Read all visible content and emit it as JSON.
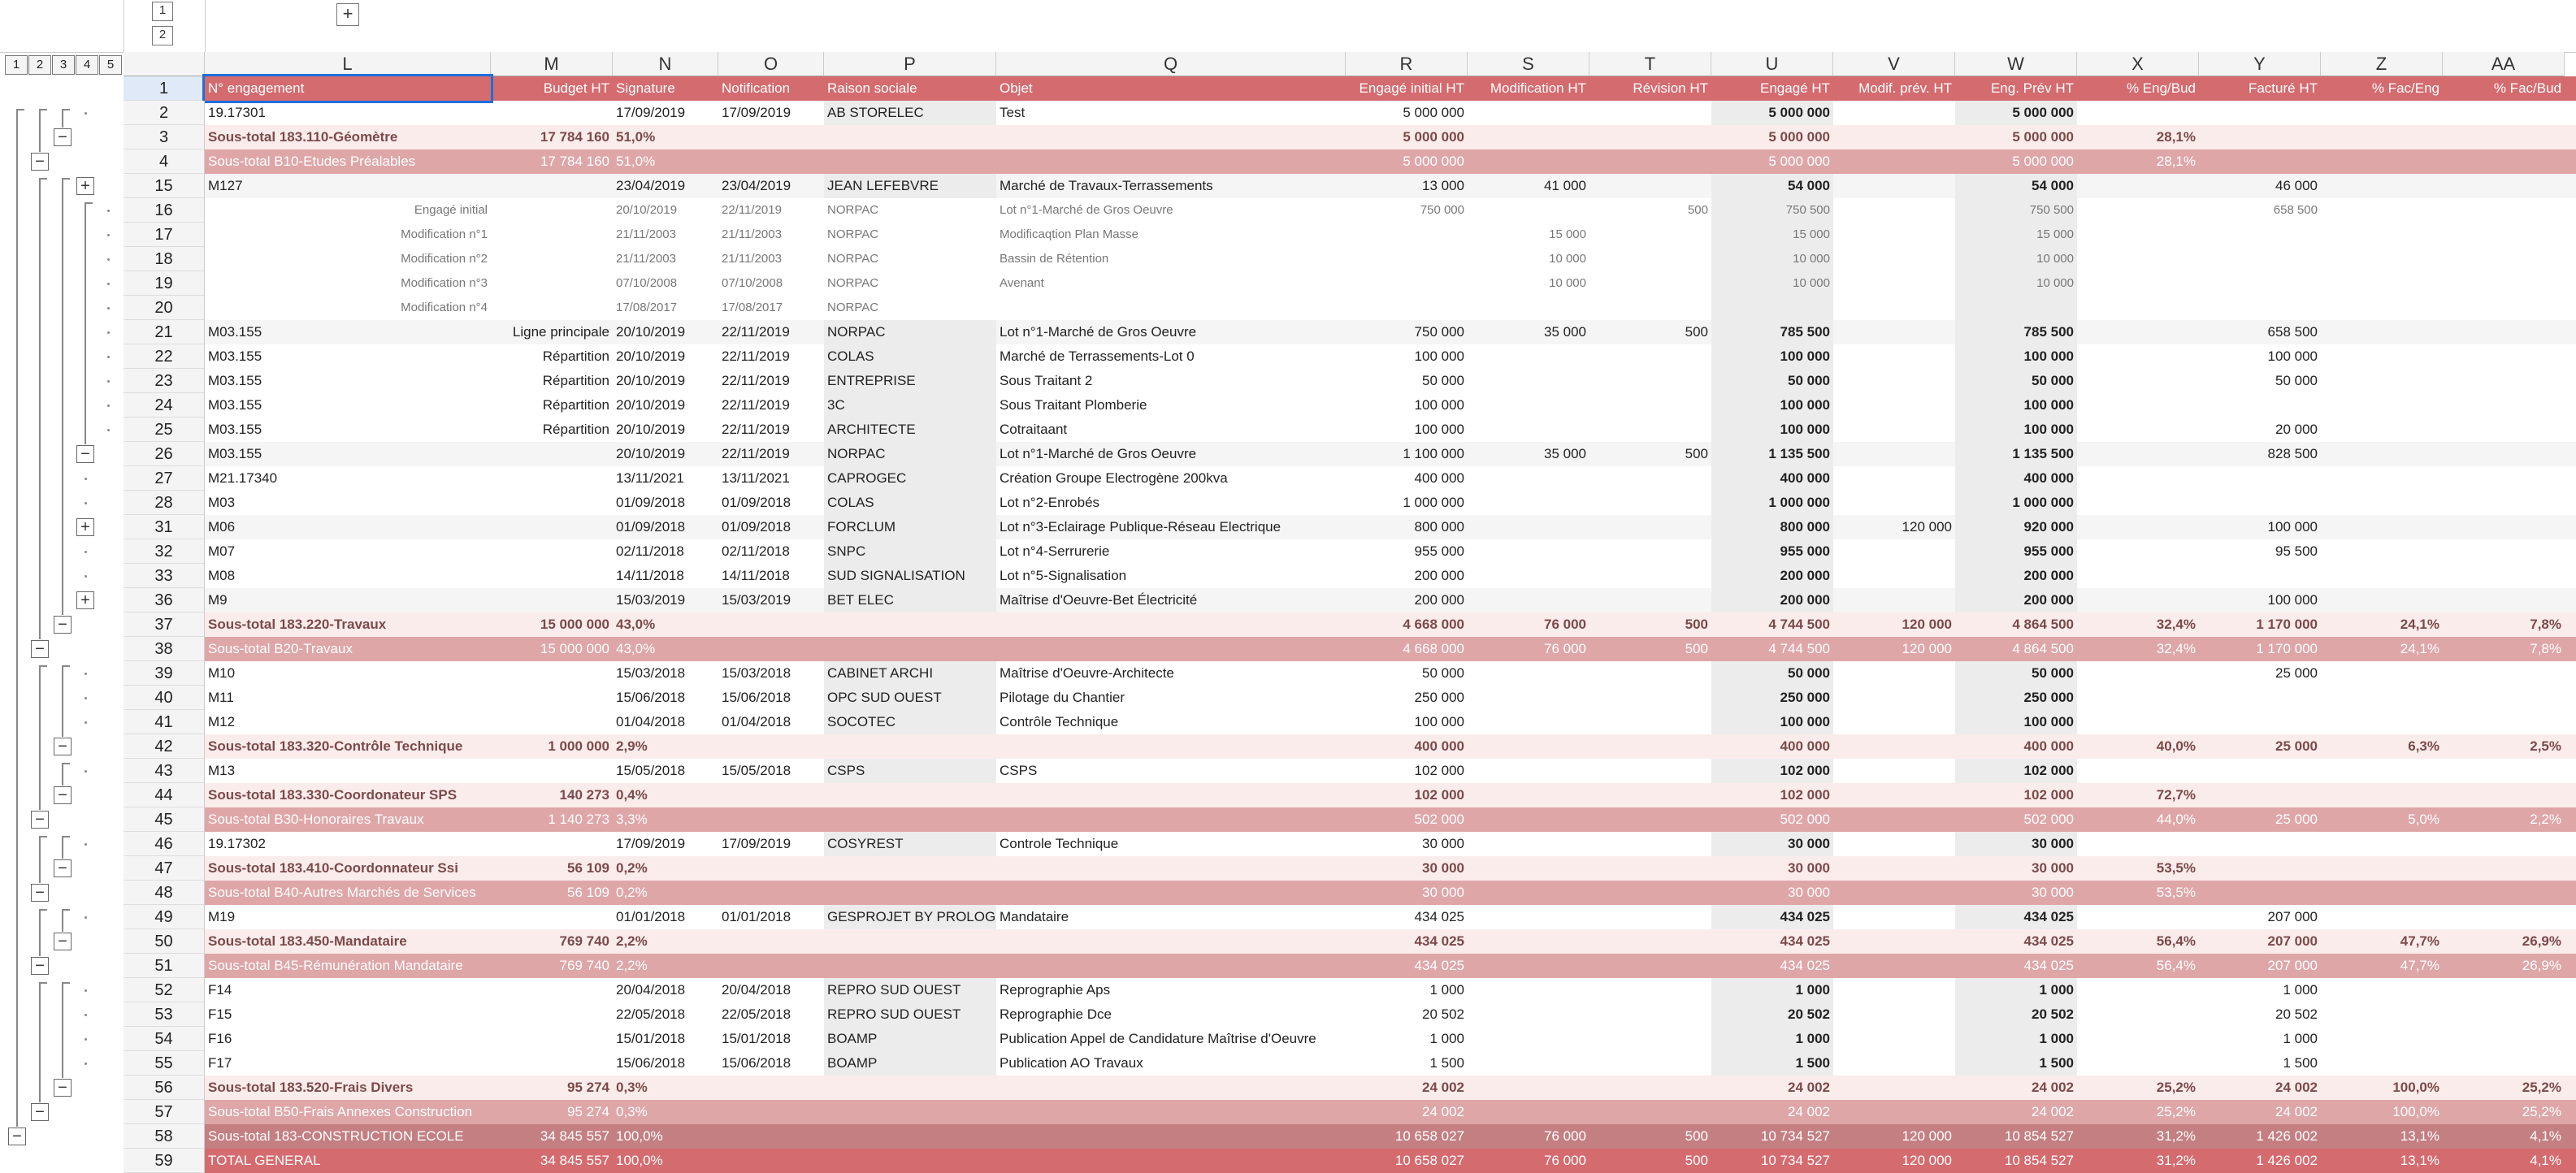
{
  "outline_top": {
    "box1": "1",
    "box2": "2",
    "expand": "+"
  },
  "levels": [
    "1",
    "2",
    "3",
    "4",
    "5"
  ],
  "columns": [
    "L",
    "M",
    "N",
    "O",
    "P",
    "Q",
    "R",
    "S",
    "T",
    "U",
    "V",
    "W",
    "X",
    "Y",
    "Z",
    "AA"
  ],
  "headers": {
    "n": "1",
    "cells": [
      "N° engagement",
      "Budget HT",
      "Signature",
      "Notification",
      "Raison sociale",
      "Objet",
      "Engagé initial HT",
      "Modification HT",
      "Révision HT",
      "Engagé HT",
      "Modif. prév. HT",
      "Eng. Prév HT",
      "% Eng/Bud",
      "Facturé HT",
      "% Fac/Eng",
      "% Fac/Bud"
    ]
  },
  "rows": [
    {
      "n": "2",
      "type": "line",
      "cells": [
        "19.17301",
        "",
        "17/09/2019",
        "17/09/2019",
        "AB STORELEC",
        "Test",
        "5 000 000",
        "",
        "",
        "5 000 000",
        "",
        "5 000 000",
        "",
        "",
        "",
        ""
      ]
    },
    {
      "n": "3",
      "type": "sub1",
      "cells": [
        "Sous-total 183.110-Géomètre",
        "17 784 160",
        "51,0%",
        "",
        "",
        "",
        "5 000 000",
        "",
        "",
        "5 000 000",
        "",
        "5 000 000",
        "28,1%",
        "",
        "",
        ""
      ]
    },
    {
      "n": "4",
      "type": "sub2",
      "cells": [
        "Sous-total B10-Etudes Préalables",
        "17 784 160",
        "51,0%",
        "",
        "",
        "",
        "5 000 000",
        "",
        "",
        "5 000 000",
        "",
        "5 000 000",
        "28,1%",
        "",
        "",
        ""
      ]
    },
    {
      "n": "15",
      "type": "line",
      "cells": [
        "M127",
        "",
        "23/04/2019",
        "23/04/2019",
        "JEAN LEFEBVRE",
        "Marché de Travaux-Terrassements",
        "13 000",
        "41 000",
        "",
        "54 000",
        "",
        "54 000",
        "",
        "46 000",
        "",
        ""
      ]
    },
    {
      "n": "16",
      "type": "mod",
      "cells": [
        "Engagé initial",
        "",
        "20/10/2019",
        "22/11/2019",
        "NORPAC",
        "Lot n°1-Marché de Gros Oeuvre",
        "750 000",
        "",
        "500",
        "750 500",
        "",
        "750 500",
        "",
        "658 500",
        "",
        ""
      ]
    },
    {
      "n": "17",
      "type": "mod",
      "cells": [
        "Modification n°1",
        "",
        "21/11/2003",
        "21/11/2003",
        "NORPAC",
        "Modificaqtion Plan Masse",
        "",
        "15 000",
        "",
        "15 000",
        "",
        "15 000",
        "",
        "",
        "",
        ""
      ]
    },
    {
      "n": "18",
      "type": "mod",
      "cells": [
        "Modification n°2",
        "",
        "21/11/2003",
        "21/11/2003",
        "NORPAC",
        "Bassin de Rétention",
        "",
        "10 000",
        "",
        "10 000",
        "",
        "10 000",
        "",
        "",
        "",
        ""
      ]
    },
    {
      "n": "19",
      "type": "mod",
      "cells": [
        "Modification n°3",
        "",
        "07/10/2008",
        "07/10/2008",
        "NORPAC",
        "Avenant",
        "",
        "10 000",
        "",
        "10 000",
        "",
        "10 000",
        "",
        "",
        "",
        ""
      ]
    },
    {
      "n": "20",
      "type": "mod",
      "cells": [
        "Modification n°4",
        "",
        "17/08/2017",
        "17/08/2017",
        "NORPAC",
        "",
        "",
        "",
        "",
        "",
        "",
        "",
        "",
        "",
        "",
        ""
      ]
    },
    {
      "n": "21",
      "type": "line",
      "cells": [
        "M03.155",
        "Ligne principale",
        "20/10/2019",
        "22/11/2019",
        "NORPAC",
        "Lot n°1-Marché de Gros Oeuvre",
        "750 000",
        "35 000",
        "500",
        "785 500",
        "",
        "785 500",
        "",
        "658 500",
        "",
        ""
      ]
    },
    {
      "n": "22",
      "type": "line",
      "cells": [
        "M03.155",
        "Répartition",
        "20/10/2019",
        "22/11/2019",
        "COLAS",
        "Marché de Terrassements-Lot 0",
        "100 000",
        "",
        "",
        "100 000",
        "",
        "100 000",
        "",
        "100 000",
        "",
        ""
      ]
    },
    {
      "n": "23",
      "type": "line",
      "cells": [
        "M03.155",
        "Répartition",
        "20/10/2019",
        "22/11/2019",
        "ENTREPRISE",
        "Sous Traitant 2",
        "50 000",
        "",
        "",
        "50 000",
        "",
        "50 000",
        "",
        "50 000",
        "",
        ""
      ]
    },
    {
      "n": "24",
      "type": "line",
      "cells": [
        "M03.155",
        "Répartition",
        "20/10/2019",
        "22/11/2019",
        "3C",
        "Sous Traitant Plomberie",
        "100 000",
        "",
        "",
        "100 000",
        "",
        "100 000",
        "",
        "",
        "",
        ""
      ]
    },
    {
      "n": "25",
      "type": "line",
      "cells": [
        "M03.155",
        "Répartition",
        "20/10/2019",
        "22/11/2019",
        "ARCHITECTE",
        "Cotraitaant",
        "100 000",
        "",
        "",
        "100 000",
        "",
        "100 000",
        "",
        "20 000",
        "",
        ""
      ]
    },
    {
      "n": "26",
      "type": "line",
      "cells": [
        "M03.155",
        "",
        "20/10/2019",
        "22/11/2019",
        "NORPAC",
        "Lot n°1-Marché de Gros Oeuvre",
        "1 100 000",
        "35 000",
        "500",
        "1 135 500",
        "",
        "1 135 500",
        "",
        "828 500",
        "",
        ""
      ]
    },
    {
      "n": "27",
      "type": "line",
      "cells": [
        "M21.17340",
        "",
        "13/11/2021",
        "13/11/2021",
        "CAPROGEC",
        "Création Groupe Electrogène 200kva",
        "400 000",
        "",
        "",
        "400 000",
        "",
        "400 000",
        "",
        "",
        "",
        ""
      ]
    },
    {
      "n": "28",
      "type": "line",
      "cells": [
        "M03",
        "",
        "01/09/2018",
        "01/09/2018",
        "COLAS",
        "Lot n°2-Enrobés",
        "1 000 000",
        "",
        "",
        "1 000 000",
        "",
        "1 000 000",
        "",
        "",
        "",
        ""
      ]
    },
    {
      "n": "31",
      "type": "line",
      "cells": [
        "M06",
        "",
        "01/09/2018",
        "01/09/2018",
        "FORCLUM",
        "Lot n°3-Eclairage Publique-Réseau Electrique",
        "800 000",
        "",
        "",
        "800 000",
        "120 000",
        "920 000",
        "",
        "100 000",
        "",
        ""
      ]
    },
    {
      "n": "32",
      "type": "line",
      "cells": [
        "M07",
        "",
        "02/11/2018",
        "02/11/2018",
        "SNPC",
        "Lot n°4-Serrurerie",
        "955 000",
        "",
        "",
        "955 000",
        "",
        "955 000",
        "",
        "95 500",
        "",
        ""
      ]
    },
    {
      "n": "33",
      "type": "line",
      "cells": [
        "M08",
        "",
        "14/11/2018",
        "14/11/2018",
        "SUD SIGNALISATION",
        "Lot n°5-Signalisation",
        "200 000",
        "",
        "",
        "200 000",
        "",
        "200 000",
        "",
        "",
        "",
        ""
      ]
    },
    {
      "n": "36",
      "type": "line",
      "cells": [
        "M9",
        "",
        "15/03/2019",
        "15/03/2019",
        "BET ELEC",
        "Maîtrise d'Oeuvre-Bet Électricité",
        "200 000",
        "",
        "",
        "200 000",
        "",
        "200 000",
        "",
        "100 000",
        "",
        ""
      ]
    },
    {
      "n": "37",
      "type": "sub1",
      "cells": [
        "Sous-total 183.220-Travaux",
        "15 000 000",
        "43,0%",
        "",
        "",
        "",
        "4 668 000",
        "76 000",
        "500",
        "4 744 500",
        "120 000",
        "4 864 500",
        "32,4%",
        "1 170 000",
        "24,1%",
        "7,8%"
      ]
    },
    {
      "n": "38",
      "type": "sub2",
      "cells": [
        "Sous-total B20-Travaux",
        "15 000 000",
        "43,0%",
        "",
        "",
        "",
        "4 668 000",
        "76 000",
        "500",
        "4 744 500",
        "120 000",
        "4 864 500",
        "32,4%",
        "1 170 000",
        "24,1%",
        "7,8%"
      ]
    },
    {
      "n": "39",
      "type": "line",
      "cells": [
        "M10",
        "",
        "15/03/2018",
        "15/03/2018",
        "CABINET ARCHI",
        "Maîtrise d'Oeuvre-Architecte",
        "50 000",
        "",
        "",
        "50 000",
        "",
        "50 000",
        "",
        "25 000",
        "",
        ""
      ]
    },
    {
      "n": "40",
      "type": "line",
      "cells": [
        "M11",
        "",
        "15/06/2018",
        "15/06/2018",
        "OPC SUD OUEST",
        "Pilotage du Chantier",
        "250 000",
        "",
        "",
        "250 000",
        "",
        "250 000",
        "",
        "",
        "",
        ""
      ]
    },
    {
      "n": "41",
      "type": "line",
      "cells": [
        "M12",
        "",
        "01/04/2018",
        "01/04/2018",
        "SOCOTEC",
        "Contrôle Technique",
        "100 000",
        "",
        "",
        "100 000",
        "",
        "100 000",
        "",
        "",
        "",
        ""
      ]
    },
    {
      "n": "42",
      "type": "sub1",
      "cells": [
        "Sous-total 183.320-Contrôle Technique",
        "1 000 000",
        "2,9%",
        "",
        "",
        "",
        "400 000",
        "",
        "",
        "400 000",
        "",
        "400 000",
        "40,0%",
        "25 000",
        "6,3%",
        "2,5%"
      ]
    },
    {
      "n": "43",
      "type": "line",
      "cells": [
        "M13",
        "",
        "15/05/2018",
        "15/05/2018",
        "CSPS",
        "CSPS",
        "102 000",
        "",
        "",
        "102 000",
        "",
        "102 000",
        "",
        "",
        "",
        ""
      ]
    },
    {
      "n": "44",
      "type": "sub1",
      "cells": [
        "Sous-total 183.330-Coordonateur SPS",
        "140 273",
        "0,4%",
        "",
        "",
        "",
        "102 000",
        "",
        "",
        "102 000",
        "",
        "102 000",
        "72,7%",
        "",
        "",
        ""
      ]
    },
    {
      "n": "45",
      "type": "sub2",
      "cells": [
        "Sous-total B30-Honoraires Travaux",
        "1 140 273",
        "3,3%",
        "",
        "",
        "",
        "502 000",
        "",
        "",
        "502 000",
        "",
        "502 000",
        "44,0%",
        "25 000",
        "5,0%",
        "2,2%"
      ]
    },
    {
      "n": "46",
      "type": "line",
      "cells": [
        "19.17302",
        "",
        "17/09/2019",
        "17/09/2019",
        "COSYREST",
        "Controle Technique",
        "30 000",
        "",
        "",
        "30 000",
        "",
        "30 000",
        "",
        "",
        "",
        ""
      ]
    },
    {
      "n": "47",
      "type": "sub1",
      "cells": [
        "Sous-total 183.410-Coordonnateur Ssi",
        "56 109",
        "0,2%",
        "",
        "",
        "",
        "30 000",
        "",
        "",
        "30 000",
        "",
        "30 000",
        "53,5%",
        "",
        "",
        ""
      ]
    },
    {
      "n": "48",
      "type": "sub2",
      "cells": [
        "Sous-total B40-Autres Marchés de Services",
        "56 109",
        "0,2%",
        "",
        "",
        "",
        "30 000",
        "",
        "",
        "30 000",
        "",
        "30 000",
        "53,5%",
        "",
        "",
        ""
      ]
    },
    {
      "n": "49",
      "type": "line",
      "cells": [
        "M19",
        "",
        "01/01/2018",
        "01/01/2018",
        "GESPROJET BY PROLOGIQ",
        "Mandataire",
        "434 025",
        "",
        "",
        "434 025",
        "",
        "434 025",
        "",
        "207 000",
        "",
        ""
      ]
    },
    {
      "n": "50",
      "type": "sub1",
      "cells": [
        "Sous-total 183.450-Mandataire",
        "769 740",
        "2,2%",
        "",
        "",
        "",
        "434 025",
        "",
        "",
        "434 025",
        "",
        "434 025",
        "56,4%",
        "207 000",
        "47,7%",
        "26,9%"
      ]
    },
    {
      "n": "51",
      "type": "sub2",
      "cells": [
        "Sous-total B45-Rémunération Mandataire",
        "769 740",
        "2,2%",
        "",
        "",
        "",
        "434 025",
        "",
        "",
        "434 025",
        "",
        "434 025",
        "56,4%",
        "207 000",
        "47,7%",
        "26,9%"
      ]
    },
    {
      "n": "52",
      "type": "line",
      "cells": [
        "F14",
        "",
        "20/04/2018",
        "20/04/2018",
        "REPRO SUD OUEST",
        "Reprographie Aps",
        "1 000",
        "",
        "",
        "1 000",
        "",
        "1 000",
        "",
        "1 000",
        "",
        ""
      ]
    },
    {
      "n": "53",
      "type": "line",
      "cells": [
        "F15",
        "",
        "22/05/2018",
        "22/05/2018",
        "REPRO SUD OUEST",
        "Reprographie Dce",
        "20 502",
        "",
        "",
        "20 502",
        "",
        "20 502",
        "",
        "20 502",
        "",
        ""
      ]
    },
    {
      "n": "54",
      "type": "line",
      "cells": [
        "F16",
        "",
        "15/01/2018",
        "15/01/2018",
        "BOAMP",
        "Publication Appel de Candidature Maîtrise d'Oeuvre",
        "1 000",
        "",
        "",
        "1 000",
        "",
        "1 000",
        "",
        "1 000",
        "",
        ""
      ]
    },
    {
      "n": "55",
      "type": "line",
      "cells": [
        "F17",
        "",
        "15/06/2018",
        "15/06/2018",
        "BOAMP",
        "Publication AO Travaux",
        "1 500",
        "",
        "",
        "1 500",
        "",
        "1 500",
        "",
        "1 500",
        "",
        ""
      ]
    },
    {
      "n": "56",
      "type": "sub1",
      "cells": [
        "Sous-total 183.520-Frais Divers",
        "95 274",
        "0,3%",
        "",
        "",
        "",
        "24 002",
        "",
        "",
        "24 002",
        "",
        "24 002",
        "25,2%",
        "24 002",
        "100,0%",
        "25,2%"
      ]
    },
    {
      "n": "57",
      "type": "sub2",
      "cells": [
        "Sous-total B50-Frais Annexes Construction",
        "95 274",
        "0,3%",
        "",
        "",
        "",
        "24 002",
        "",
        "",
        "24 002",
        "",
        "24 002",
        "25,2%",
        "24 002",
        "100,0%",
        "25,2%"
      ]
    },
    {
      "n": "58",
      "type": "sub3",
      "cells": [
        "Sous-total 183-CONSTRUCTION ECOLE",
        "34 845 557",
        "100,0%",
        "",
        "",
        "",
        "10 658 027",
        "76 000",
        "500",
        "10 734 527",
        "120 000",
        "10 854 527",
        "31,2%",
        "1 426 002",
        "13,1%",
        "4,1%"
      ]
    },
    {
      "n": "59",
      "type": "tot",
      "cells": [
        "TOTAL GENERAL",
        "34 845 557",
        "100,0%",
        "",
        "",
        "",
        "10 658 027",
        "76 000",
        "500",
        "10 734 527",
        "120 000",
        "10 854 527",
        "31,2%",
        "1 426 002",
        "13,1%",
        "4,1%"
      ]
    }
  ]
}
